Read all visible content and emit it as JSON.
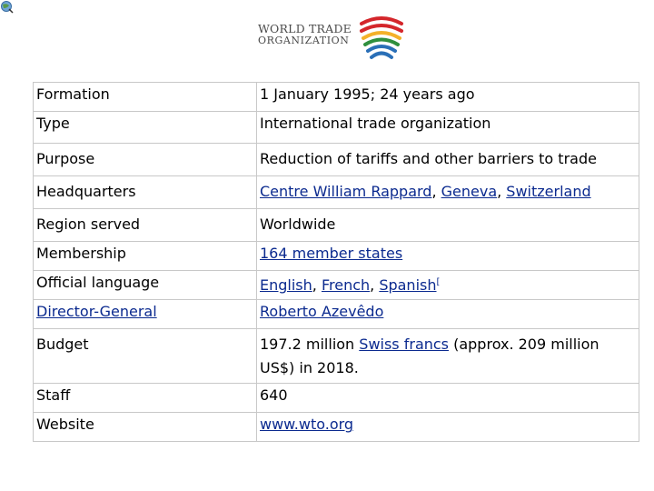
{
  "logo": {
    "line1": "WORLD TRADE",
    "line2": "ORGANIZATION",
    "colors": [
      "#d4262b",
      "#f4b12a",
      "#2f8f3e",
      "#2a6fb7"
    ]
  },
  "colors": {
    "link": "#0b2a8f",
    "border": "#c8c8c8"
  },
  "rows": [
    {
      "label": "Formation",
      "value": "1 January 1995; 24 years ago"
    },
    {
      "label": "Type",
      "value": "International trade organization"
    },
    {
      "label": "Purpose",
      "value": "Reduction of tariffs and other barriers to trade"
    },
    {
      "label": "Headquarters",
      "links": [
        "Centre William Rappard",
        "Geneva",
        "Switzerland"
      ]
    },
    {
      "label": "Region served",
      "value": "Worldwide"
    },
    {
      "label": "Membership",
      "link": "164 member states"
    },
    {
      "label": "Official language",
      "links": [
        "English",
        "French",
        "Spanish"
      ],
      "footnote": "["
    },
    {
      "label": "Director-General",
      "link": "Roberto Azevêdo"
    },
    {
      "label": "Budget",
      "pre": "197.2 million ",
      "link": "Swiss francs",
      "post": " (approx. 209 million US$) in 2018."
    },
    {
      "label": "Staff",
      "value": "640"
    },
    {
      "label": "Website",
      "link": "www.wto.org"
    }
  ]
}
